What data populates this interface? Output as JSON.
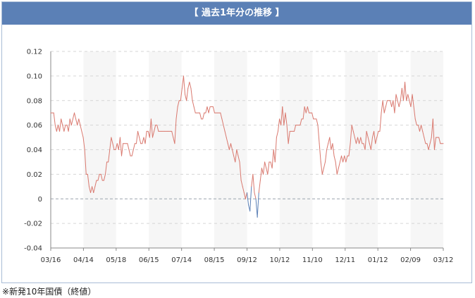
{
  "header": {
    "title": "【 過去1年分の推移 】"
  },
  "footnote": "※新発10年国債（終値）",
  "colors": {
    "header_bg": "#5b80b6",
    "positive_line": "#d9786e",
    "negative_line": "#5b80b6",
    "band": "#f6f6f6"
  },
  "chart_data": {
    "type": "line",
    "title": "",
    "xlabel": "",
    "ylabel": "",
    "ylim": [
      -0.04,
      0.12
    ],
    "yticks": [
      "0.12",
      "0.10",
      "0.08",
      "0.06",
      "0.04",
      "0.02",
      "0",
      "-0.02",
      "-0.04"
    ],
    "xticks": [
      "03/16",
      "04/14",
      "05/18",
      "06/15",
      "07/14",
      "08/15",
      "09/12",
      "10/12",
      "11/10",
      "12/11",
      "01/12",
      "02/09",
      "03/12"
    ],
    "grid": true,
    "legend": "none",
    "series": [
      {
        "values": [
          0.07,
          0.07,
          0.07,
          0.06,
          0.055,
          0.06,
          0.055,
          0.065,
          0.06,
          0.055,
          0.06,
          0.06,
          0.055,
          0.065,
          0.06,
          0.065,
          0.07,
          0.065,
          0.06,
          0.065,
          0.06,
          0.055,
          0.05,
          0.04,
          0.02,
          0.02,
          0.01,
          0.005,
          0.01,
          0.005,
          0.01,
          0.015,
          0.015,
          0.02,
          0.02,
          0.015,
          0.015,
          0.02,
          0.03,
          0.03,
          0.04,
          0.05,
          0.045,
          0.04,
          0.04,
          0.045,
          0.04,
          0.05,
          0.035,
          0.045,
          0.045,
          0.045,
          0.045,
          0.04,
          0.035,
          0.035,
          0.04,
          0.045,
          0.045,
          0.055,
          0.05,
          0.045,
          0.045,
          0.05,
          0.045,
          0.055,
          0.055,
          0.05,
          0.065,
          0.05,
          0.055,
          0.06,
          0.06,
          0.055,
          0.055,
          0.055,
          0.055,
          0.055,
          0.055,
          0.055,
          0.055,
          0.055,
          0.055,
          0.05,
          0.045,
          0.065,
          0.075,
          0.08,
          0.08,
          0.09,
          0.1,
          0.085,
          0.08,
          0.09,
          0.095,
          0.09,
          0.08,
          0.075,
          0.07,
          0.07,
          0.07,
          0.07,
          0.065,
          0.065,
          0.07,
          0.07,
          0.075,
          0.07,
          0.075,
          0.075,
          0.075,
          0.07,
          0.07,
          0.07,
          0.07,
          0.07,
          0.065,
          0.06,
          0.055,
          0.05,
          0.045,
          0.04,
          0.045,
          0.04,
          0.035,
          0.03,
          0.04,
          0.035,
          0.03,
          0.015,
          0.01,
          0.005,
          0.0,
          0.005,
          -0.005,
          -0.01,
          0.01,
          0.02,
          0.005,
          0.0,
          -0.015,
          0.005,
          0.015,
          0.025,
          0.02,
          0.03,
          0.025,
          0.02,
          0.03,
          0.03,
          0.025,
          0.04,
          0.03,
          0.05,
          0.055,
          0.065,
          0.06,
          0.075,
          0.06,
          0.07,
          0.06,
          0.045,
          0.055,
          0.055,
          0.055,
          0.055,
          0.06,
          0.06,
          0.06,
          0.06,
          0.065,
          0.065,
          0.075,
          0.07,
          0.075,
          0.07,
          0.07,
          0.07,
          0.065,
          0.065,
          0.065,
          0.06,
          0.045,
          0.03,
          0.02,
          0.025,
          0.03,
          0.04,
          0.045,
          0.05,
          0.04,
          0.045,
          0.035,
          0.03,
          0.02,
          0.025,
          0.03,
          0.035,
          0.03,
          0.035,
          0.03,
          0.035,
          0.035,
          0.045,
          0.06,
          0.055,
          0.05,
          0.045,
          0.05,
          0.045,
          0.05,
          0.045,
          0.045,
          0.04,
          0.055,
          0.05,
          0.045,
          0.04,
          0.05,
          0.055,
          0.045,
          0.05,
          0.055,
          0.055,
          0.07,
          0.08,
          0.07,
          0.075,
          0.08,
          0.08,
          0.08,
          0.075,
          0.08,
          0.07,
          0.085,
          0.08,
          0.075,
          0.08,
          0.09,
          0.08,
          0.095,
          0.08,
          0.085,
          0.08,
          0.075,
          0.085,
          0.075,
          0.065,
          0.06,
          0.06,
          0.055,
          0.06,
          0.055,
          0.05,
          0.045,
          0.045,
          0.04,
          0.045,
          0.05,
          0.065,
          0.04,
          0.05,
          0.05,
          0.05,
          0.045,
          0.045,
          0.045
        ]
      }
    ]
  }
}
